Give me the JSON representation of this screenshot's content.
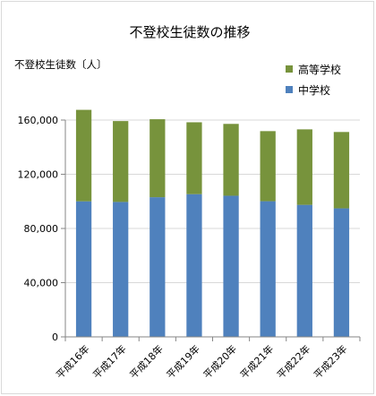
{
  "chart_data": {
    "type": "bar",
    "stacked": true,
    "title": "不登校生徒数の推移",
    "ylabel": "不登校生徒数〔人〕",
    "xlabel": "",
    "categories": [
      "平成16年",
      "平成17年",
      "平成18年",
      "平成19年",
      "平成20年",
      "平成21年",
      "平成22年",
      "平成23年"
    ],
    "series": [
      {
        "name": "中学校",
        "color": "#4f81bd",
        "values": [
          100040,
          99578,
          103069,
          105328,
          104153,
          100105,
          97428,
          94836
        ]
      },
      {
        "name": "高等学校",
        "color": "#77933c",
        "values": [
          67500,
          59680,
          57544,
          53041,
          53020,
          51728,
          55707,
          56361
        ]
      }
    ],
    "ylim": [
      0,
      160000
    ],
    "yticks": [
      0,
      40000,
      80000,
      120000,
      160000
    ],
    "ytick_labels": [
      "0",
      "40,000",
      "80,000",
      "120,000",
      "160,000"
    ],
    "grid": true,
    "legend_position": "top-right"
  }
}
